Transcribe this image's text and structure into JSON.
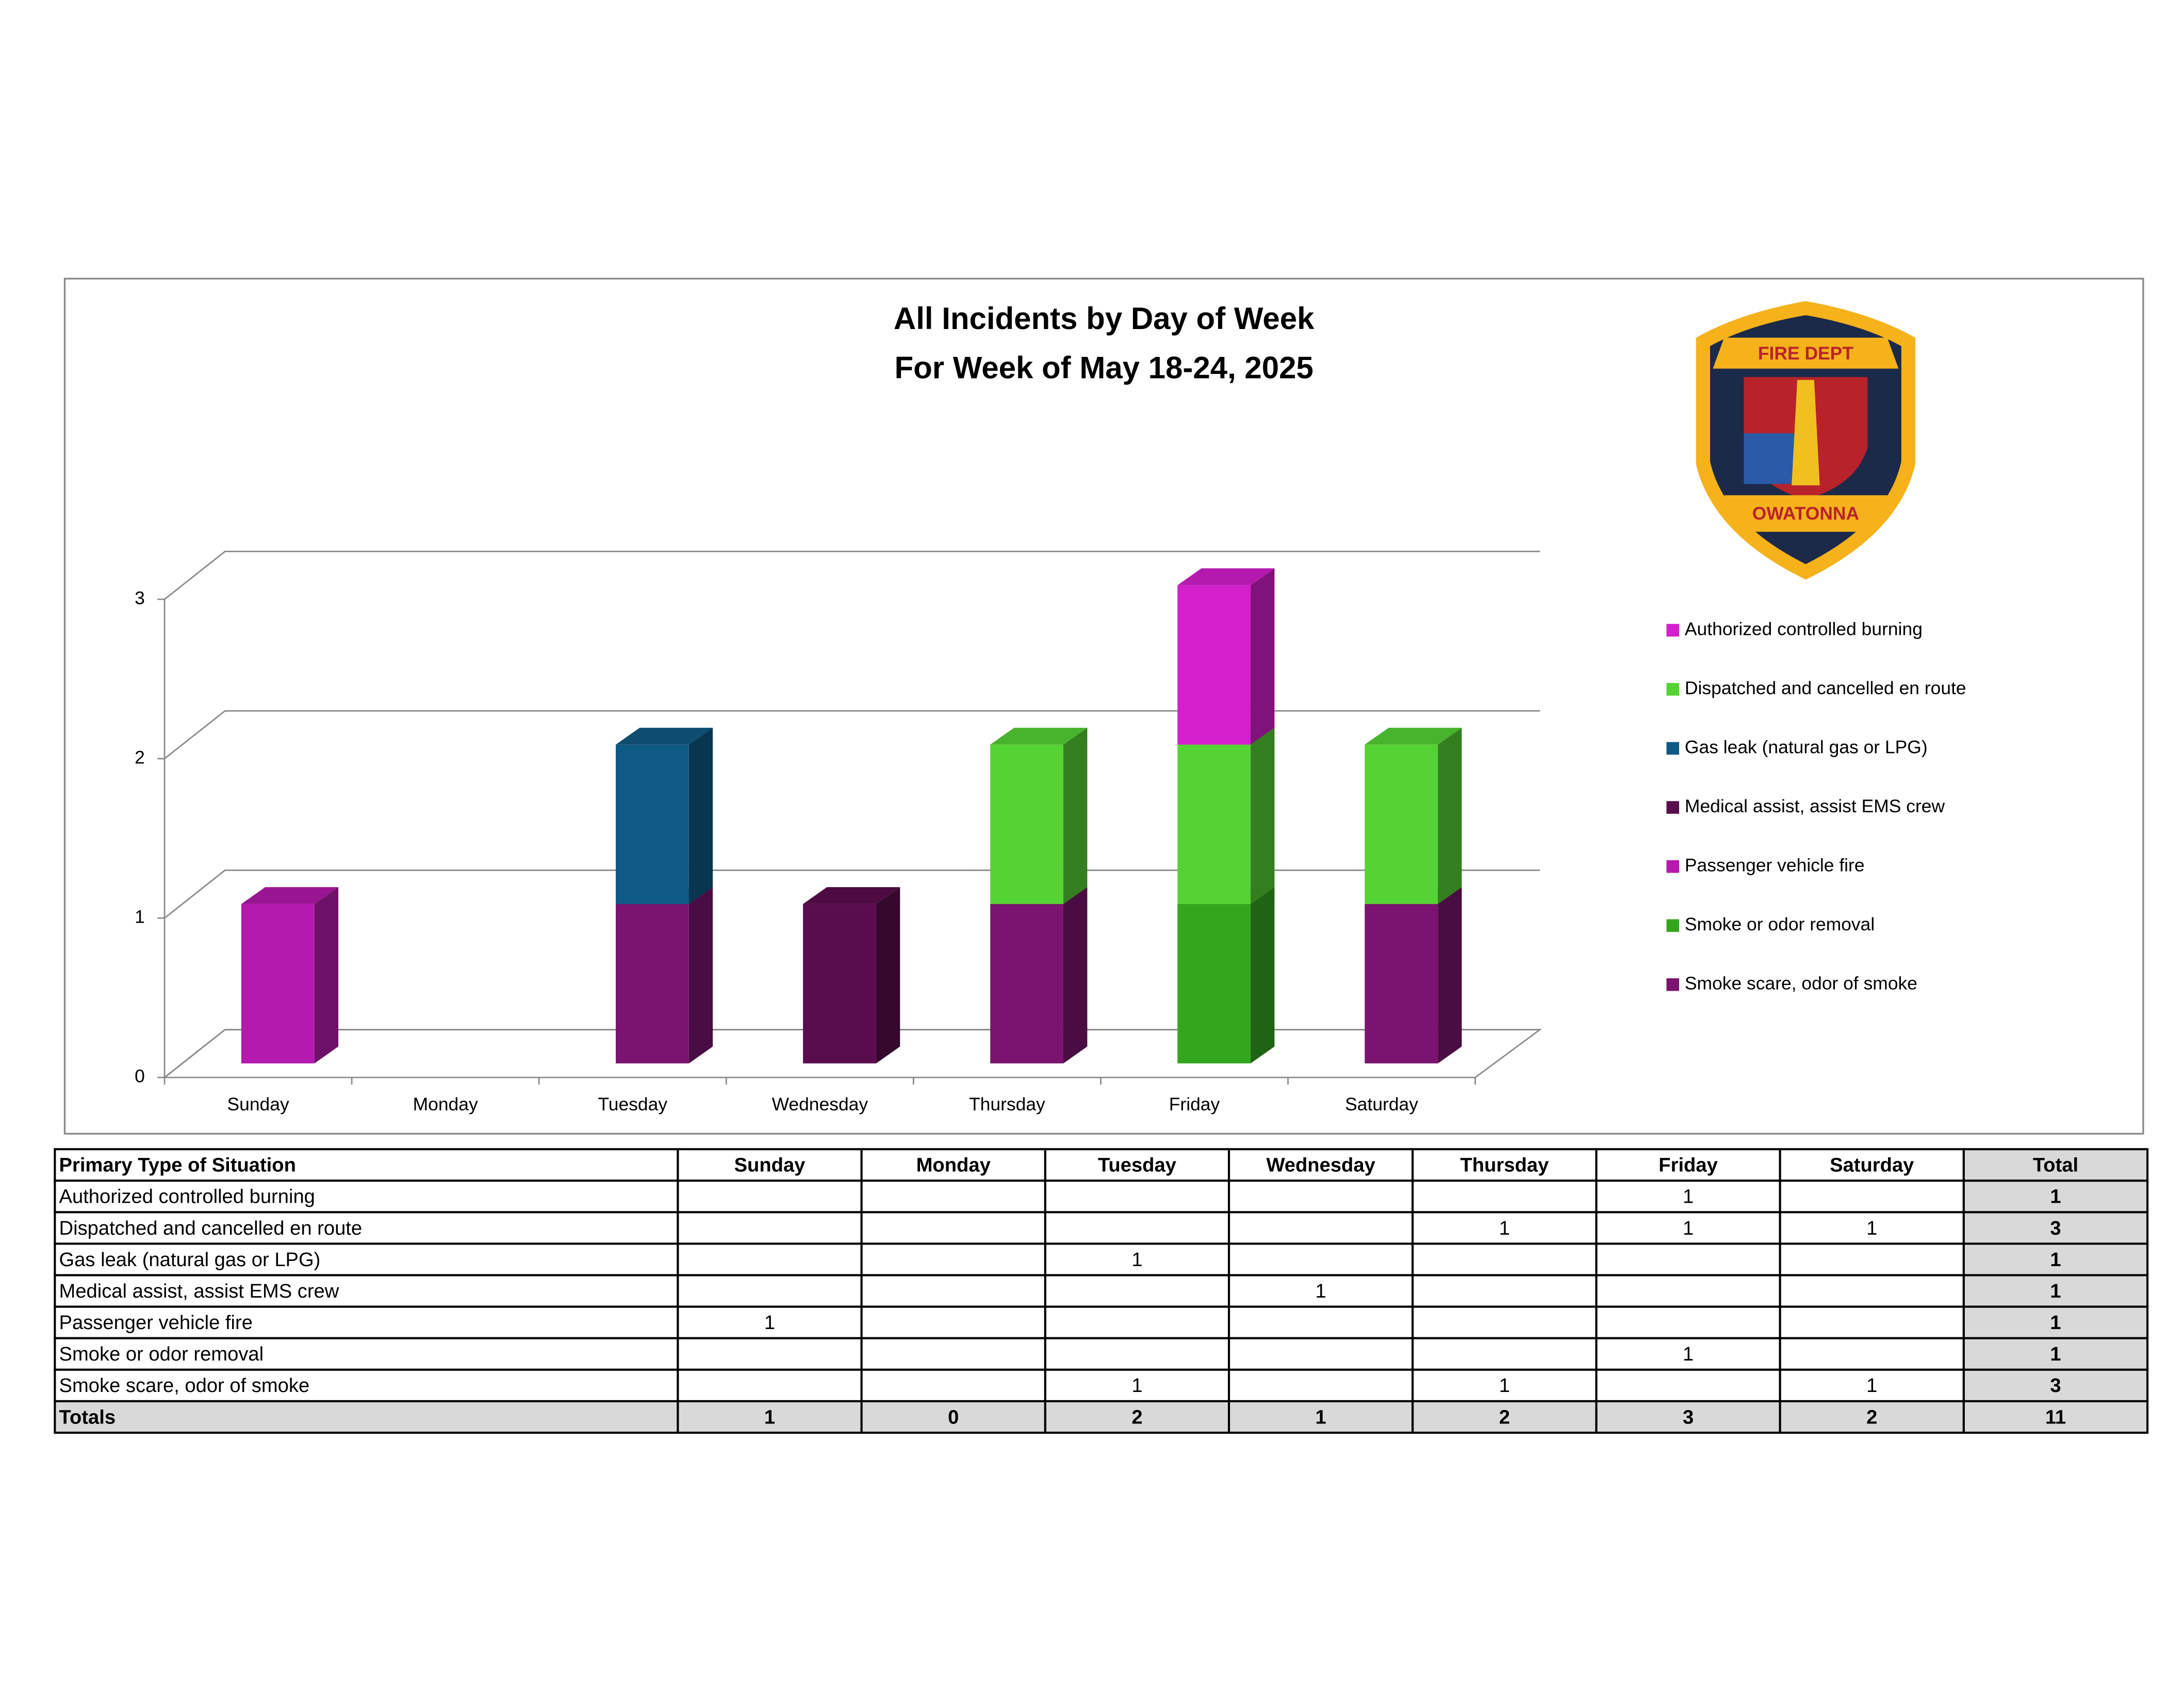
{
  "chart_data": {
    "type": "bar3d-stacked",
    "title": "All Incidents by Day of Week",
    "subtitle": "For Week of May 18-24, 2025",
    "categories": [
      "Sunday",
      "Monday",
      "Tuesday",
      "Wednesday",
      "Thursday",
      "Friday",
      "Saturday"
    ],
    "series": [
      {
        "name": "Authorized controlled burning",
        "color": "#d41fcc",
        "values": [
          null,
          null,
          null,
          null,
          null,
          1,
          null
        ]
      },
      {
        "name": "Dispatched and cancelled en route",
        "color": "#55d334",
        "values": [
          null,
          null,
          null,
          null,
          1,
          1,
          1
        ]
      },
      {
        "name": "Gas leak (natural gas or LPG)",
        "color": "#0e5a84",
        "values": [
          null,
          null,
          1,
          null,
          null,
          null,
          null
        ]
      },
      {
        "name": "Medical assist, assist EMS crew",
        "color": "#5a0d4c",
        "values": [
          null,
          null,
          null,
          1,
          null,
          null,
          null
        ]
      },
      {
        "name": "Passenger vehicle fire",
        "color": "#b41aad",
        "values": [
          1,
          null,
          null,
          null,
          null,
          null,
          null
        ]
      },
      {
        "name": "Smoke or odor removal",
        "color": "#34a61e",
        "values": [
          null,
          null,
          null,
          null,
          null,
          1,
          null
        ]
      },
      {
        "name": "Smoke scare, odor of smoke",
        "color": "#7a1470",
        "values": [
          null,
          null,
          1,
          null,
          1,
          null,
          1
        ]
      }
    ],
    "ylim": [
      0,
      3
    ],
    "yticks": [
      0,
      1,
      2,
      3
    ],
    "grid": true,
    "legend": "right",
    "logo": {
      "top": "FIRE DEPT",
      "bottom": "OWATONNA"
    }
  },
  "table": {
    "header": [
      "Primary Type of Situation",
      "Sunday",
      "Monday",
      "Tuesday",
      "Wednesday",
      "Thursday",
      "Friday",
      "Saturday",
      "Total"
    ],
    "rows": [
      {
        "label": "Authorized controlled burning",
        "cells": [
          null,
          null,
          null,
          null,
          null,
          1,
          null
        ],
        "total": 1
      },
      {
        "label": "Dispatched and cancelled en route",
        "cells": [
          null,
          null,
          null,
          null,
          1,
          1,
          1
        ],
        "total": 3
      },
      {
        "label": "Gas leak (natural gas or LPG)",
        "cells": [
          null,
          null,
          1,
          null,
          null,
          null,
          null
        ],
        "total": 1
      },
      {
        "label": "Medical assist, assist EMS crew",
        "cells": [
          null,
          null,
          null,
          1,
          null,
          null,
          null
        ],
        "total": 1
      },
      {
        "label": "Passenger vehicle fire",
        "cells": [
          1,
          null,
          null,
          null,
          null,
          null,
          null
        ],
        "total": 1
      },
      {
        "label": "Smoke or odor removal",
        "cells": [
          null,
          null,
          null,
          null,
          null,
          1,
          null
        ],
        "total": 1
      },
      {
        "label": "Smoke scare, odor of smoke",
        "cells": [
          null,
          null,
          1,
          null,
          1,
          null,
          1
        ],
        "total": 3
      }
    ],
    "totals": {
      "label": "Totals",
      "cells": [
        1,
        0,
        2,
        1,
        2,
        3,
        2
      ],
      "total": 11
    }
  }
}
